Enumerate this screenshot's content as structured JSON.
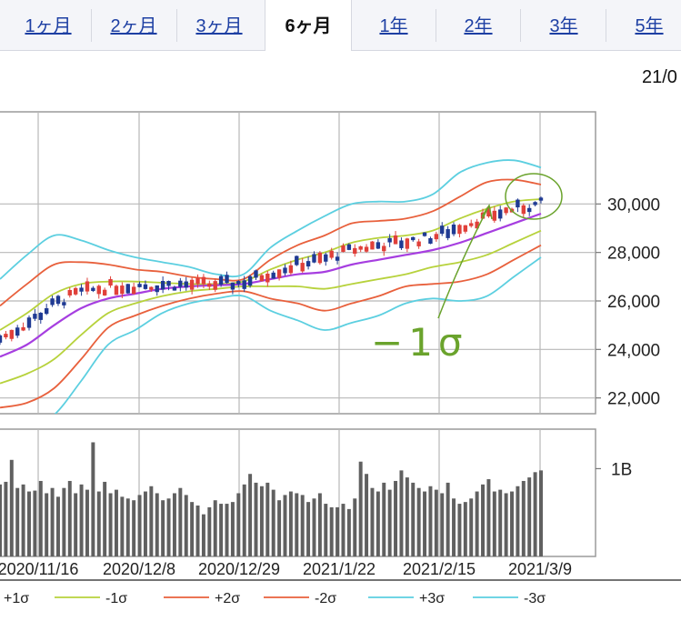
{
  "tabs": [
    {
      "label": "1ヶ月",
      "active": false
    },
    {
      "label": "2ヶ月",
      "active": false
    },
    {
      "label": "3ヶ月",
      "active": false
    },
    {
      "label": "6ヶ月",
      "active": true
    },
    {
      "label": "1年",
      "active": false
    },
    {
      "label": "2年",
      "active": false
    },
    {
      "label": "3年",
      "active": false
    },
    {
      "label": "5年",
      "active": false
    }
  ],
  "date_label": "21/0",
  "annotation": "−1σ",
  "colors": {
    "up_candle": "#e0403a",
    "down_candle": "#1f3a93",
    "ma_line": "#a63ee0",
    "sigma1": "#b7d23c",
    "sigma2": "#e8603c",
    "sigma3": "#5ccfe0",
    "volume": "#606060",
    "annotation": "#6aa32c"
  },
  "chart_data": [
    {
      "type": "line",
      "title": "",
      "x_tick_labels": [
        "2020/11/16",
        "2020/12/8",
        "2020/12/29",
        "2021/1/22",
        "2021/2/15",
        "2021/3/9"
      ],
      "y_tick_labels": [
        "30,000",
        "28,000",
        "26,000",
        "24,000",
        "22,000"
      ],
      "y_ticks": [
        30000,
        28000,
        26000,
        24000,
        22000
      ],
      "ylim": [
        21350,
        33800
      ],
      "grid": true,
      "legend_position": "bottom",
      "legend": [
        "+1σ",
        "-1σ",
        "+2σ",
        "-2σ",
        "+3σ",
        "-3σ"
      ],
      "x": [
        0,
        6,
        12,
        18,
        24,
        30,
        36,
        42,
        48,
        54,
        60,
        66,
        72,
        78,
        84,
        90,
        96,
        102,
        108,
        114,
        120
      ],
      "series": [
        {
          "name": "",
          "values": [
            23700,
            24200,
            25000,
            25700,
            26100,
            26300,
            26500,
            26600,
            26650,
            26700,
            26900,
            27100,
            27200,
            27500,
            27700,
            27900,
            28100,
            28400,
            28800,
            29200,
            29600
          ]
        },
        {
          "name": "+1σ",
          "values": [
            24800,
            25500,
            26300,
            26700,
            26800,
            26800,
            26750,
            26700,
            26700,
            26800,
            27300,
            27700,
            28000,
            28400,
            28600,
            28700,
            28900,
            29400,
            29800,
            30100,
            30200
          ]
        },
        {
          "name": "-1σ",
          "values": [
            22600,
            23000,
            23600,
            24600,
            25500,
            25900,
            26200,
            26400,
            26500,
            26600,
            26600,
            26600,
            26500,
            26700,
            26900,
            27100,
            27400,
            27600,
            27900,
            28400,
            28900
          ]
        },
        {
          "name": "+2σ",
          "values": [
            25800,
            26700,
            27500,
            27600,
            27500,
            27300,
            27200,
            27000,
            26900,
            26900,
            27700,
            28300,
            28700,
            29200,
            29300,
            29400,
            29700,
            30300,
            30900,
            31000,
            30800
          ]
        },
        {
          "name": "-2σ",
          "values": [
            21600,
            21800,
            22400,
            23600,
            24900,
            25400,
            25800,
            26100,
            26300,
            26400,
            26100,
            25900,
            25600,
            25900,
            26200,
            26600,
            26700,
            26800,
            27100,
            27700,
            28300
          ]
        },
        {
          "name": "+3σ",
          "values": [
            26900,
            27900,
            28700,
            28500,
            28100,
            27800,
            27600,
            27400,
            27100,
            27100,
            28200,
            28900,
            29500,
            30000,
            30100,
            30100,
            30400,
            31300,
            31700,
            31800,
            31500
          ]
        },
        {
          "name": "-3σ",
          "values": [
            20700,
            20700,
            21300,
            22700,
            24200,
            24800,
            25500,
            25900,
            26100,
            26200,
            25600,
            25200,
            24800,
            25100,
            25400,
            25900,
            26100,
            26000,
            26200,
            27000,
            27800
          ]
        }
      ]
    },
    {
      "type": "bar",
      "title": "",
      "y_tick_labels": [
        "1B"
      ],
      "ylim": [
        0,
        1.45
      ],
      "values": [
        0.82,
        0.85,
        1.1,
        0.78,
        0.82,
        0.74,
        0.75,
        0.86,
        0.72,
        0.78,
        0.68,
        0.78,
        0.86,
        0.72,
        0.82,
        0.76,
        1.3,
        0.74,
        0.85,
        0.72,
        0.76,
        0.68,
        0.66,
        0.64,
        0.7,
        0.74,
        0.8,
        0.72,
        0.64,
        0.66,
        0.72,
        0.78,
        0.7,
        0.62,
        0.58,
        0.48,
        0.56,
        0.64,
        0.6,
        0.6,
        0.62,
        0.72,
        0.82,
        0.94,
        0.84,
        0.8,
        0.84,
        0.76,
        0.64,
        0.7,
        0.74,
        0.72,
        0.7,
        0.62,
        0.66,
        0.72,
        0.6,
        0.56,
        0.56,
        0.6,
        0.54,
        0.66,
        1.08,
        0.94,
        0.78,
        0.74,
        0.84,
        0.76,
        0.86,
        0.98,
        0.9,
        0.84,
        0.78,
        0.74,
        0.8,
        0.76,
        0.72,
        0.84,
        0.66,
        0.6,
        0.62,
        0.66,
        0.74,
        0.82,
        0.88,
        0.74,
        0.76,
        0.72,
        0.74,
        0.8,
        0.86,
        0.9,
        0.96,
        0.98
      ]
    }
  ]
}
